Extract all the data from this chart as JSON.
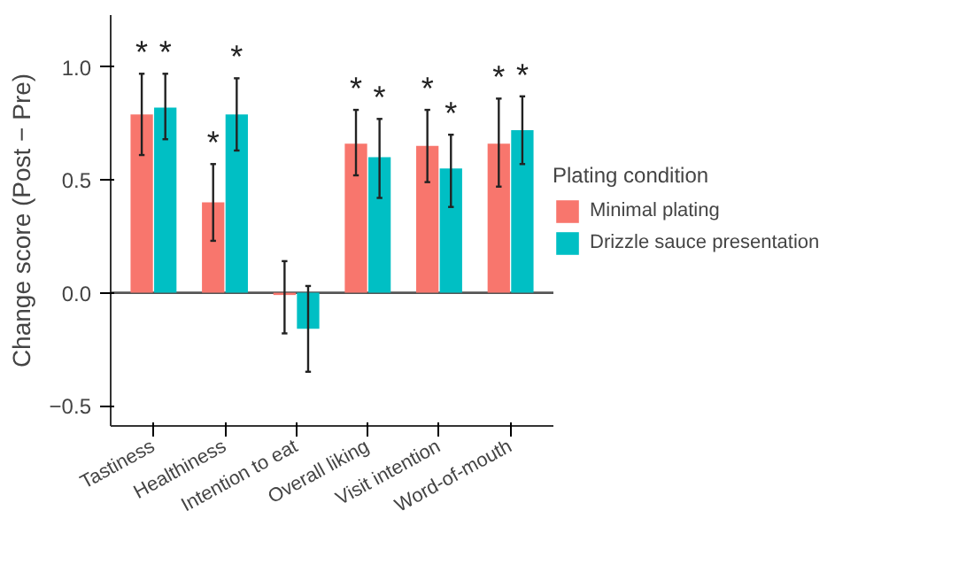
{
  "chart_data": {
    "type": "bar",
    "ylabel": "Change score (Post − Pre)",
    "legend_title": "Plating condition",
    "legend": "right",
    "categories": [
      "Tastiness",
      "Healthiness",
      "Intention to eat",
      "Overall liking",
      "Visit intention",
      "Word-of-mouth"
    ],
    "series": [
      {
        "name": "Minimal plating",
        "color": "#f8766d",
        "values": [
          0.79,
          0.4,
          -0.01,
          0.66,
          0.65,
          0.66
        ],
        "value_labels": [
          "*",
          "*",
          null,
          "*",
          "*",
          "*"
        ],
        "errors": [
          [
            0.61,
            0.97
          ],
          [
            0.23,
            0.57
          ],
          [
            -0.18,
            0.14
          ],
          [
            0.52,
            0.81
          ],
          [
            0.49,
            0.81
          ],
          [
            0.47,
            0.86
          ]
        ]
      },
      {
        "name": "Drizzle sauce presentation",
        "color": "#00bfc4",
        "values": [
          0.82,
          0.79,
          -0.16,
          0.6,
          0.55,
          0.72
        ],
        "value_labels": [
          "*",
          "*",
          null,
          "*",
          "*",
          "*"
        ],
        "errors": [
          [
            0.68,
            0.97
          ],
          [
            0.63,
            0.95
          ],
          [
            -0.35,
            0.03
          ],
          [
            0.42,
            0.77
          ],
          [
            0.38,
            0.7
          ],
          [
            0.57,
            0.87
          ]
        ]
      }
    ],
    "ylim": [
      -0.59,
      1.23
    ],
    "yticks": [
      {
        "value": -0.5,
        "label": "−0.5"
      },
      {
        "value": 0,
        "label": "0.0"
      },
      {
        "value": 0.5,
        "label": "0.5"
      },
      {
        "value": 1,
        "label": "1.0"
      }
    ],
    "grid": false,
    "ref_lines": [
      {
        "axis": "y",
        "value": 0,
        "color": "#555555"
      }
    ]
  }
}
